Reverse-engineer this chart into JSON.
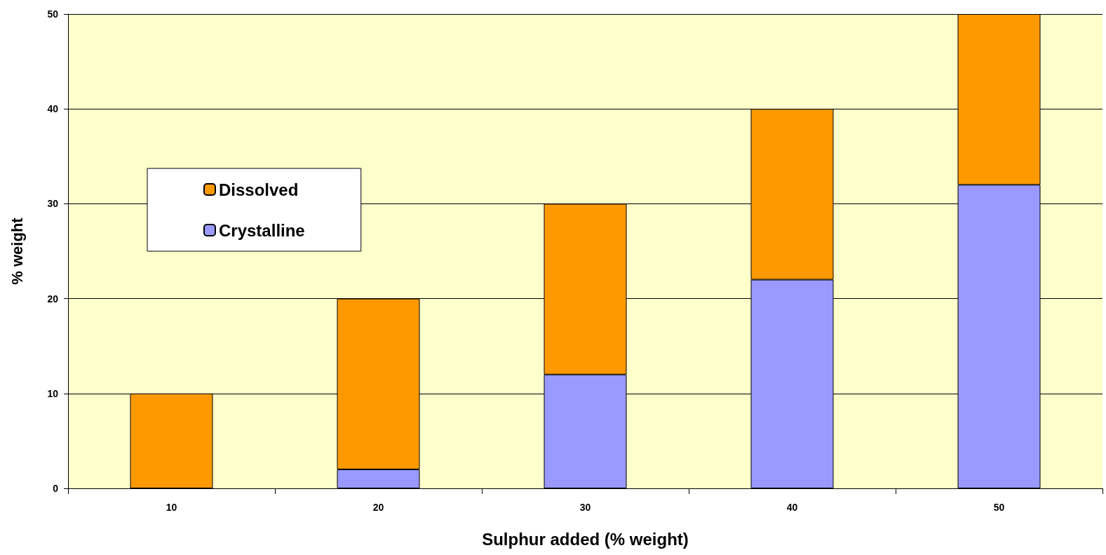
{
  "chart_data": {
    "type": "bar",
    "xlabel": "Sulphur added (% weight)",
    "ylabel": "% weight",
    "categories": [
      "10",
      "20",
      "30",
      "40",
      "50"
    ],
    "stacked": true,
    "series": [
      {
        "name": "Crystalline",
        "color": "#9999ff",
        "values": [
          0,
          2,
          12,
          22,
          32
        ]
      },
      {
        "name": "Dissolved",
        "color": "#ff9900",
        "values": [
          10,
          18,
          18,
          18,
          18
        ]
      }
    ],
    "ylim": [
      0,
      50
    ],
    "yticks": [
      0,
      10,
      20,
      30,
      40,
      50
    ],
    "grid": "y",
    "legend": "top left"
  }
}
